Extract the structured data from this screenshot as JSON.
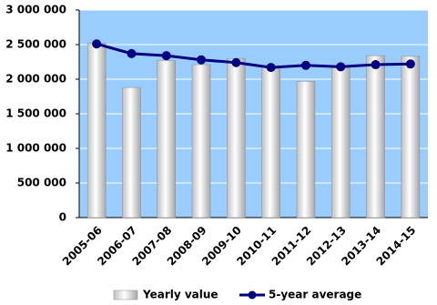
{
  "chart_data": {
    "type": "bar",
    "categories": [
      "2005-06",
      "2006-07",
      "2007-08",
      "2008-09",
      "2009-10",
      "2010-11",
      "2011-12",
      "2012-13",
      "2013-14",
      "2014-15"
    ],
    "series": [
      {
        "name": "Yearly value",
        "type": "bar",
        "color": "#ffffff",
        "values": [
          2520000,
          1880000,
          2270000,
          2210000,
          2300000,
          2180000,
          1970000,
          2180000,
          2340000,
          2330000
        ]
      },
      {
        "name": "5-year average",
        "type": "line",
        "color": "#000080",
        "values": [
          2510000,
          2370000,
          2340000,
          2280000,
          2240000,
          2170000,
          2200000,
          2180000,
          2210000,
          2220000
        ]
      }
    ],
    "ylim": [
      0,
      3000000
    ],
    "yticks": [
      {
        "value": 0,
        "label": "0"
      },
      {
        "value": 500000,
        "label": "500 000"
      },
      {
        "value": 1000000,
        "label": "1 000 000"
      },
      {
        "value": 1500000,
        "label": "1 500 000"
      },
      {
        "value": 2000000,
        "label": "2 000 000"
      },
      {
        "value": 2500000,
        "label": "2 500 000"
      },
      {
        "value": 3000000,
        "label": "3 000 000"
      }
    ],
    "grid": true,
    "plot_background": "#99ccff",
    "legend": "bottom"
  }
}
